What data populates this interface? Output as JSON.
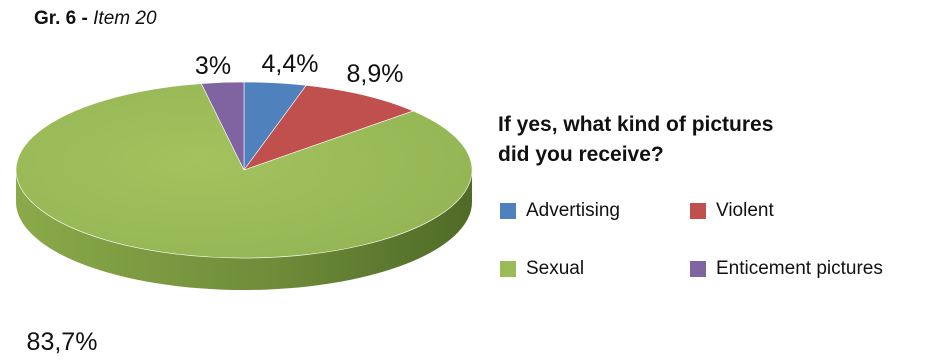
{
  "caption": {
    "prefix": "Gr. 6 -",
    "item": "Item 20"
  },
  "colors": {
    "advertising": "#4f81bd",
    "violent": "#c0504d",
    "sexual": "#9bbb59",
    "enticement": "#8064a2"
  },
  "chart_data": {
    "type": "pie",
    "title": "If yes, what kind of pictures did you receive?",
    "title_lines": [
      "If yes, what kind of pictures",
      "did you receive?"
    ],
    "style": "3d",
    "slices": [
      {
        "name": "Advertising",
        "value": 4.4,
        "label": "4,4%",
        "color": "#4f81bd"
      },
      {
        "name": "Violent",
        "value": 8.9,
        "label": "8,9%",
        "color": "#c0504d"
      },
      {
        "name": "Sexual",
        "value": 83.7,
        "label": "83,7%",
        "color": "#9bbb59"
      },
      {
        "name": "Enticement pictures",
        "value": 3,
        "label": "3%",
        "color": "#8064a2"
      }
    ],
    "legend": {
      "placement": "right",
      "items": [
        "Advertising",
        "Violent",
        "Sexual",
        "Enticement pictures"
      ]
    }
  }
}
